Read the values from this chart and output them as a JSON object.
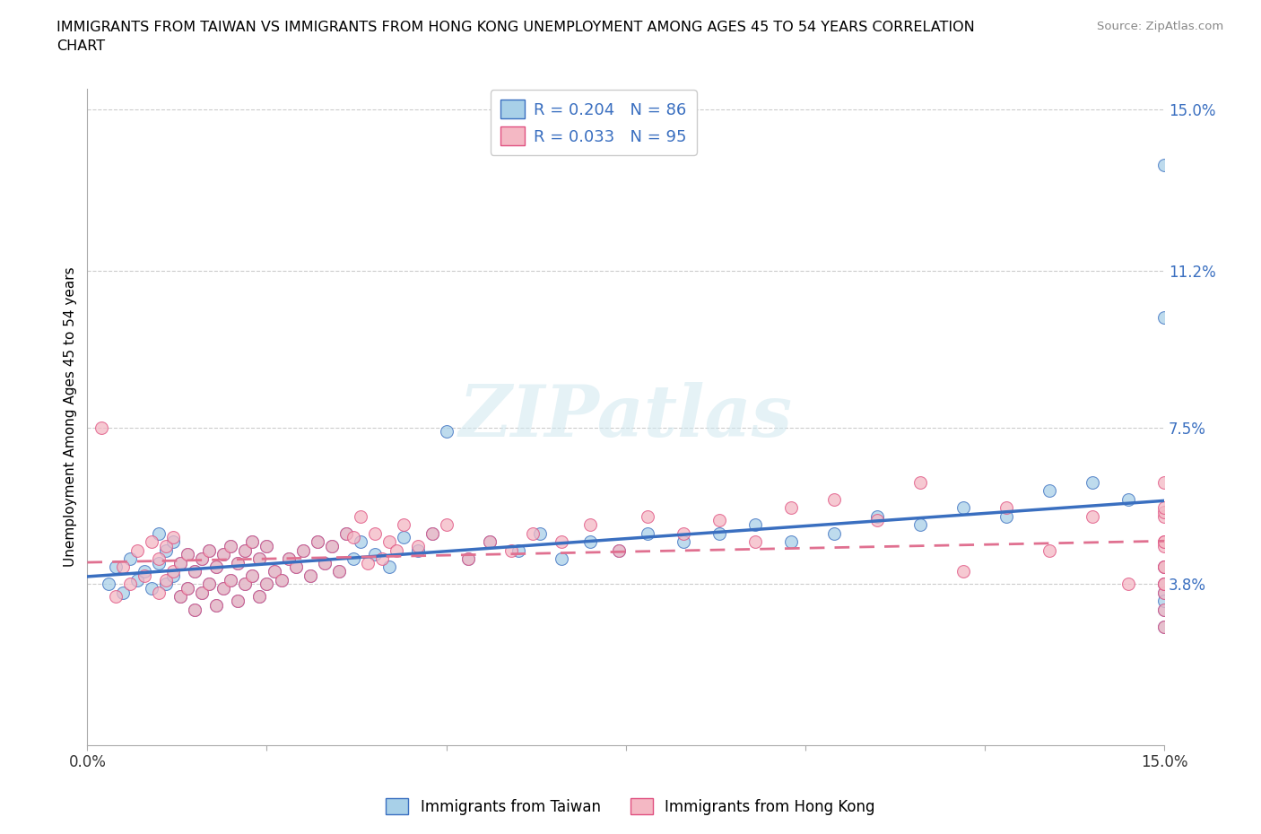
{
  "title": "IMMIGRANTS FROM TAIWAN VS IMMIGRANTS FROM HONG KONG UNEMPLOYMENT AMONG AGES 45 TO 54 YEARS CORRELATION\nCHART",
  "source": "Source: ZipAtlas.com",
  "ylabel": "Unemployment Among Ages 45 to 54 years",
  "legend_label_1": "Immigrants from Taiwan",
  "legend_label_2": "Immigrants from Hong Kong",
  "R1": 0.204,
  "N1": 86,
  "R2": 0.033,
  "N2": 95,
  "color1": "#a8d0e8",
  "color2": "#f4b8c4",
  "line_color1": "#3a6fc0",
  "line_color2": "#e05080",
  "line_color2_dash": "#e07090",
  "xlim": [
    0.0,
    0.15
  ],
  "ylim": [
    0.0,
    0.155
  ],
  "yticks": [
    0.038,
    0.075,
    0.112,
    0.15
  ],
  "ytick_labels": [
    "3.8%",
    "7.5%",
    "11.2%",
    "15.0%"
  ],
  "xticks": [
    0.0,
    0.025,
    0.05,
    0.075,
    0.1,
    0.125,
    0.15
  ],
  "xtick_labels": [
    "0.0%",
    "",
    "",
    "",
    "",
    "",
    "15.0%"
  ],
  "watermark_text": "ZIPatlas",
  "taiwan_x": [
    0.003,
    0.004,
    0.005,
    0.006,
    0.007,
    0.008,
    0.009,
    0.01,
    0.01,
    0.011,
    0.011,
    0.012,
    0.012,
    0.013,
    0.013,
    0.014,
    0.014,
    0.015,
    0.015,
    0.016,
    0.016,
    0.017,
    0.017,
    0.018,
    0.018,
    0.019,
    0.019,
    0.02,
    0.02,
    0.021,
    0.021,
    0.022,
    0.022,
    0.023,
    0.023,
    0.024,
    0.024,
    0.025,
    0.025,
    0.026,
    0.027,
    0.028,
    0.029,
    0.03,
    0.031,
    0.032,
    0.033,
    0.034,
    0.035,
    0.036,
    0.037,
    0.038,
    0.04,
    0.042,
    0.044,
    0.046,
    0.048,
    0.05,
    0.053,
    0.056,
    0.06,
    0.063,
    0.066,
    0.07,
    0.074,
    0.078,
    0.083,
    0.088,
    0.093,
    0.098,
    0.104,
    0.11,
    0.116,
    0.122,
    0.128,
    0.134,
    0.14,
    0.145,
    0.15,
    0.15,
    0.15,
    0.15,
    0.15,
    0.15,
    0.15,
    0.15
  ],
  "taiwan_y": [
    0.038,
    0.042,
    0.036,
    0.044,
    0.039,
    0.041,
    0.037,
    0.043,
    0.05,
    0.038,
    0.046,
    0.04,
    0.048,
    0.035,
    0.043,
    0.037,
    0.045,
    0.032,
    0.041,
    0.036,
    0.044,
    0.038,
    0.046,
    0.033,
    0.042,
    0.037,
    0.045,
    0.039,
    0.047,
    0.034,
    0.043,
    0.038,
    0.046,
    0.04,
    0.048,
    0.035,
    0.044,
    0.038,
    0.047,
    0.041,
    0.039,
    0.044,
    0.042,
    0.046,
    0.04,
    0.048,
    0.043,
    0.047,
    0.041,
    0.05,
    0.044,
    0.048,
    0.045,
    0.042,
    0.049,
    0.046,
    0.05,
    0.074,
    0.044,
    0.048,
    0.046,
    0.05,
    0.044,
    0.048,
    0.046,
    0.05,
    0.048,
    0.05,
    0.052,
    0.048,
    0.05,
    0.054,
    0.052,
    0.056,
    0.054,
    0.06,
    0.062,
    0.058,
    0.036,
    0.042,
    0.032,
    0.038,
    0.028,
    0.034,
    0.101,
    0.137
  ],
  "hk_x": [
    0.002,
    0.004,
    0.005,
    0.006,
    0.007,
    0.008,
    0.009,
    0.01,
    0.01,
    0.011,
    0.011,
    0.012,
    0.012,
    0.013,
    0.013,
    0.014,
    0.014,
    0.015,
    0.015,
    0.016,
    0.016,
    0.017,
    0.017,
    0.018,
    0.018,
    0.019,
    0.019,
    0.02,
    0.02,
    0.021,
    0.021,
    0.022,
    0.022,
    0.023,
    0.023,
    0.024,
    0.024,
    0.025,
    0.025,
    0.026,
    0.027,
    0.028,
    0.029,
    0.03,
    0.031,
    0.032,
    0.033,
    0.034,
    0.035,
    0.036,
    0.037,
    0.038,
    0.039,
    0.04,
    0.041,
    0.042,
    0.043,
    0.044,
    0.046,
    0.048,
    0.05,
    0.053,
    0.056,
    0.059,
    0.062,
    0.066,
    0.07,
    0.074,
    0.078,
    0.083,
    0.088,
    0.093,
    0.098,
    0.104,
    0.11,
    0.116,
    0.122,
    0.128,
    0.134,
    0.14,
    0.145,
    0.15,
    0.15,
    0.15,
    0.15,
    0.15,
    0.15,
    0.15,
    0.15,
    0.15,
    0.15,
    0.15,
    0.15,
    0.15,
    0.15
  ],
  "hk_y": [
    0.075,
    0.035,
    0.042,
    0.038,
    0.046,
    0.04,
    0.048,
    0.036,
    0.044,
    0.039,
    0.047,
    0.041,
    0.049,
    0.035,
    0.043,
    0.037,
    0.045,
    0.032,
    0.041,
    0.036,
    0.044,
    0.038,
    0.046,
    0.033,
    0.042,
    0.037,
    0.045,
    0.039,
    0.047,
    0.034,
    0.043,
    0.038,
    0.046,
    0.04,
    0.048,
    0.035,
    0.044,
    0.038,
    0.047,
    0.041,
    0.039,
    0.044,
    0.042,
    0.046,
    0.04,
    0.048,
    0.043,
    0.047,
    0.041,
    0.05,
    0.049,
    0.054,
    0.043,
    0.05,
    0.044,
    0.048,
    0.046,
    0.052,
    0.047,
    0.05,
    0.052,
    0.044,
    0.048,
    0.046,
    0.05,
    0.048,
    0.052,
    0.046,
    0.054,
    0.05,
    0.053,
    0.048,
    0.056,
    0.058,
    0.053,
    0.062,
    0.041,
    0.056,
    0.046,
    0.054,
    0.038,
    0.048,
    0.036,
    0.042,
    0.032,
    0.038,
    0.028,
    0.054,
    0.047,
    0.062,
    0.048,
    0.038,
    0.055,
    0.042,
    0.056
  ]
}
